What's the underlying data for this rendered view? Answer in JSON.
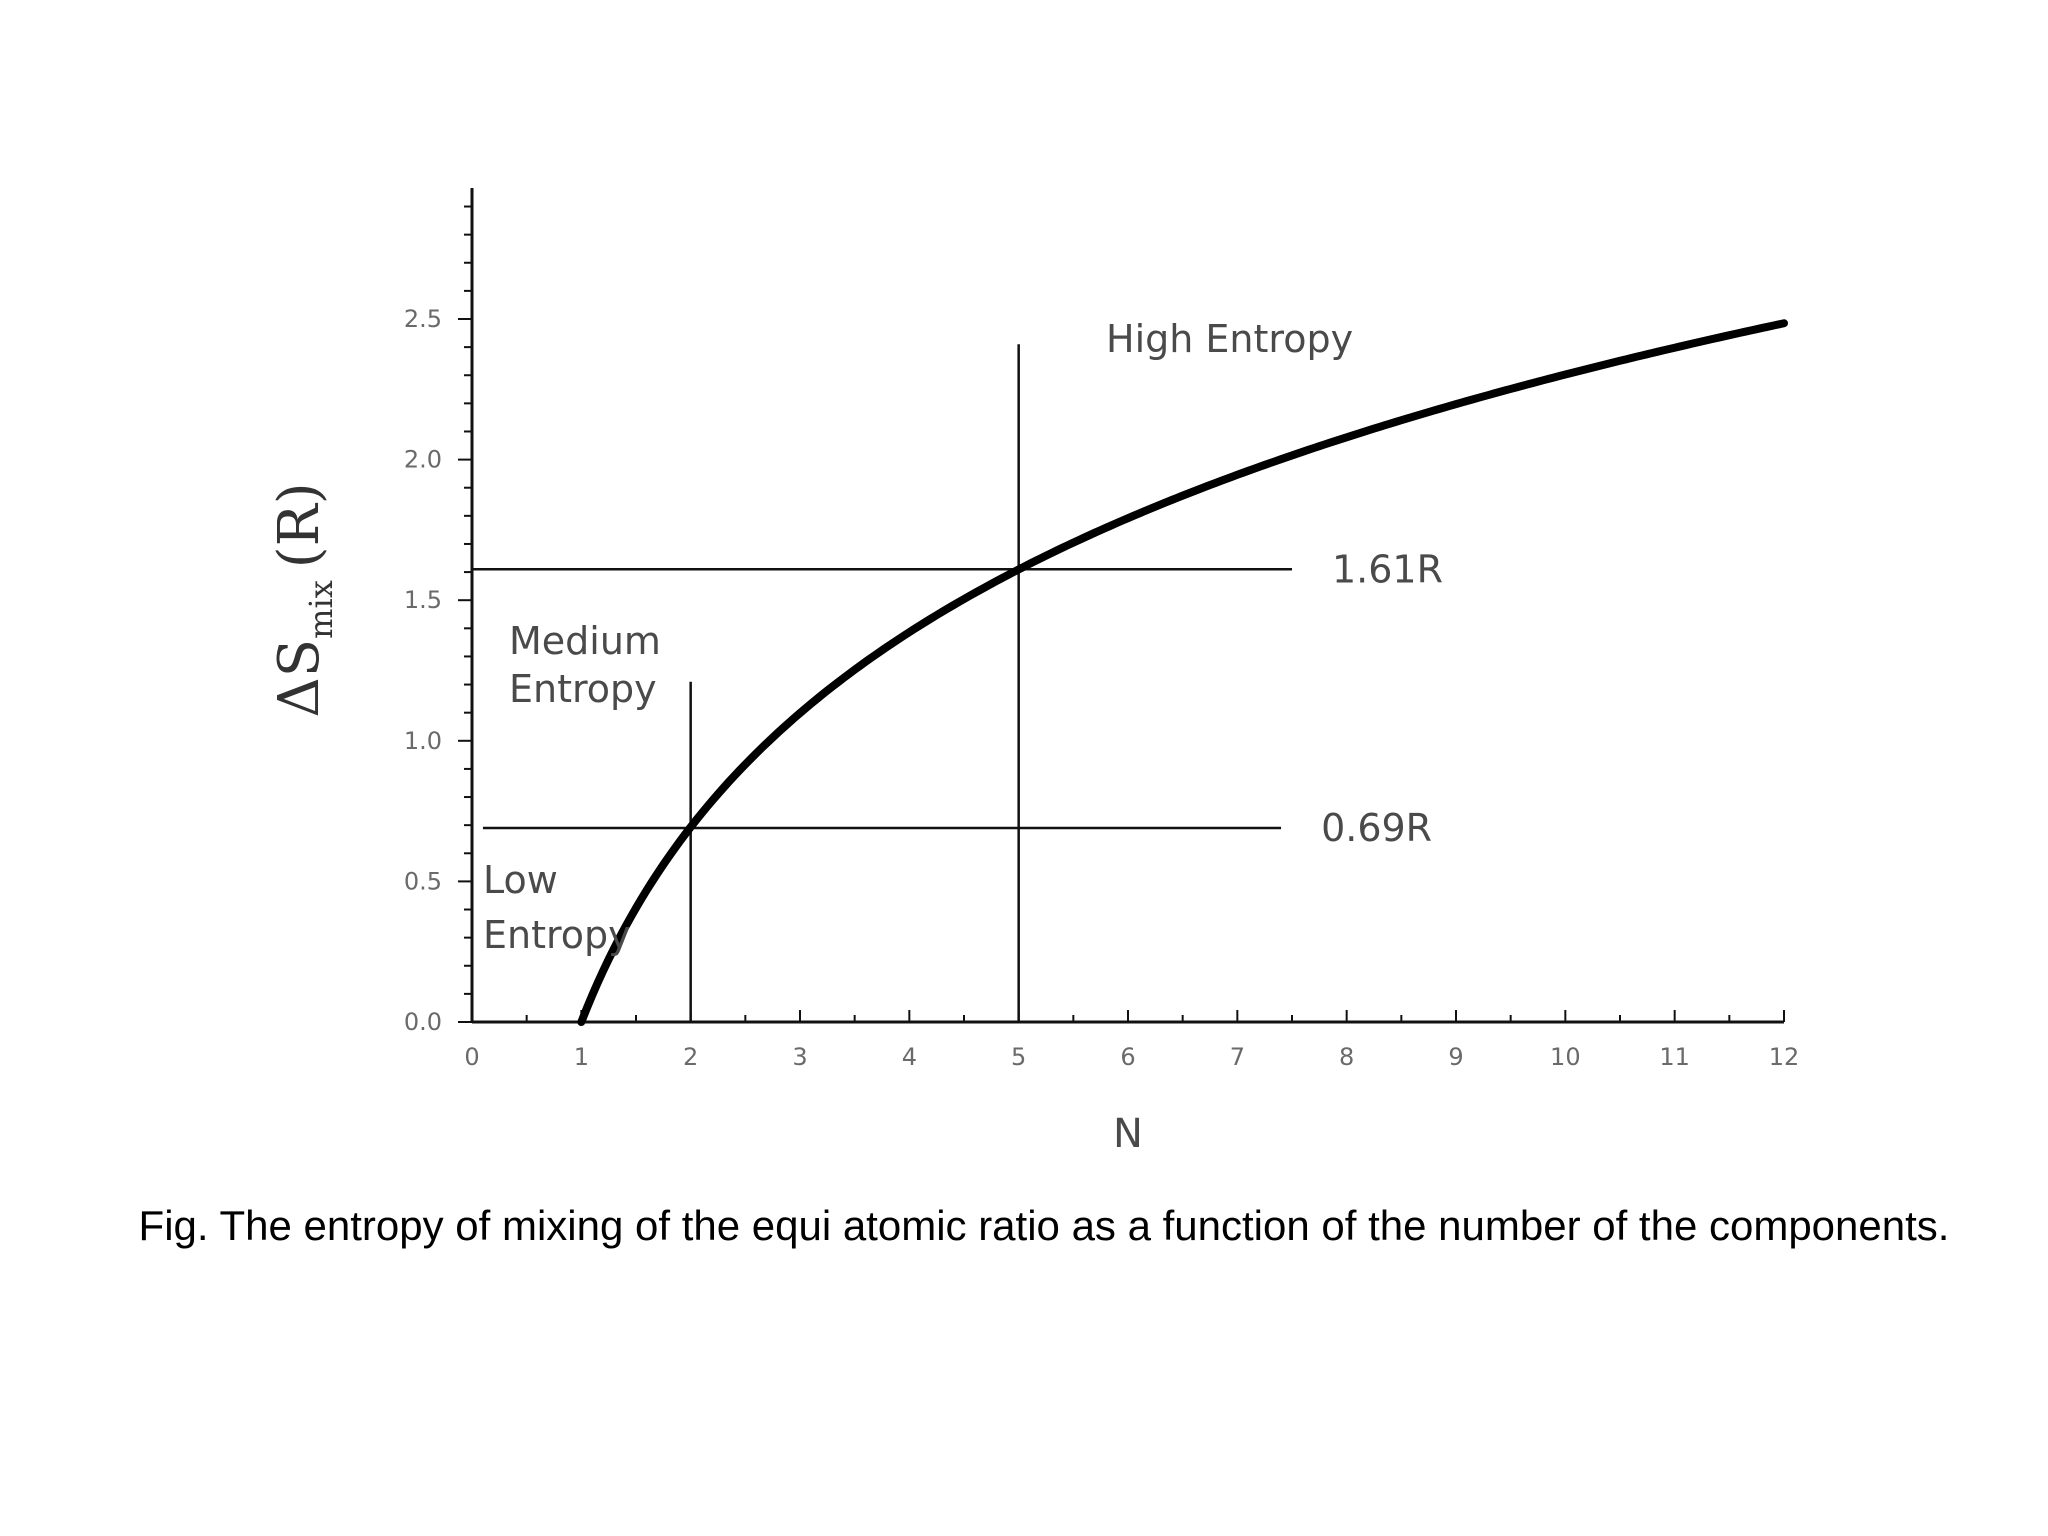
{
  "caption": "Fig. The entropy of mixing of the equi atomic ratio as a function of the number of the components.",
  "chart_data": {
    "type": "line",
    "xlabel": "N",
    "ylabel": {
      "main": "ΔS",
      "sub": "mix",
      "unit": "(R)"
    },
    "xlim": [
      0,
      12
    ],
    "ylim": [
      0,
      3.0
    ],
    "x_ticks": [
      "0",
      "1",
      "2",
      "3",
      "4",
      "5",
      "6",
      "7",
      "8",
      "9",
      "10",
      "11",
      "12"
    ],
    "y_ticks": [
      "0.0",
      "0.5",
      "1.0",
      "1.5",
      "2.0",
      "2.5"
    ],
    "series": [
      {
        "x": [
          1,
          1.5,
          2,
          2.5,
          3,
          3.5,
          4,
          4.5,
          5,
          5.5,
          6,
          6.5,
          7,
          7.5,
          8,
          8.5,
          9,
          9.5,
          10,
          10.5,
          11,
          11.5,
          12
        ],
        "y": [
          0.0,
          0.41,
          0.69,
          0.92,
          1.1,
          1.25,
          1.39,
          1.5,
          1.61,
          1.7,
          1.79,
          1.87,
          1.95,
          2.01,
          2.08,
          2.14,
          2.2,
          2.25,
          2.3,
          2.35,
          2.4,
          2.44,
          2.48
        ]
      }
    ],
    "reference_lines": [
      {
        "orientation": "horizontal",
        "y": 0.69,
        "x_from": 0.1,
        "x_to": 7.4,
        "label": "0.69R"
      },
      {
        "orientation": "horizontal",
        "y": 1.61,
        "x_from": 0.0,
        "x_to": 7.5,
        "label": "1.61R"
      },
      {
        "orientation": "vertical",
        "x": 2,
        "y_from": 0.0,
        "y_to": 1.21
      },
      {
        "orientation": "vertical",
        "x": 5,
        "y_from": 0.0,
        "y_to": 2.41
      }
    ],
    "annotations": [
      {
        "id": "low",
        "lines": [
          "Low",
          "Entropy"
        ]
      },
      {
        "id": "medium",
        "lines": [
          "Medium",
          "Entropy"
        ]
      },
      {
        "id": "high",
        "lines": [
          "High Entropy"
        ]
      }
    ]
  }
}
